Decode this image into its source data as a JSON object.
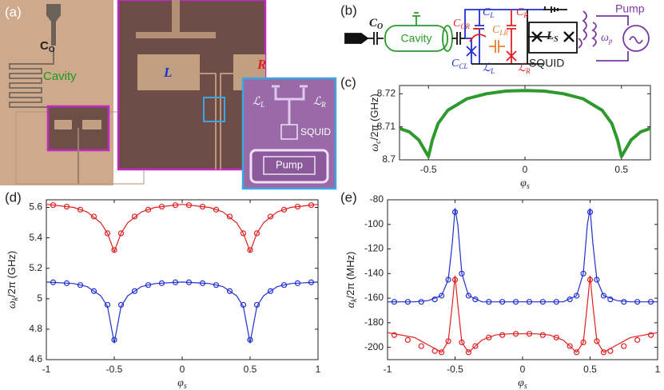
{
  "figure": {
    "panels": [
      "(a)",
      "(b)",
      "(c)",
      "(d)",
      "(e)"
    ],
    "photo": {
      "co": {
        "main": "C",
        "sub": "O"
      },
      "cavity": "Cavity",
      "L": "L",
      "R": "R",
      "ll": {
        "main": "ℒ",
        "sub": "L"
      },
      "lr": {
        "main": "ℒ",
        "sub": "R"
      },
      "squid": "SQUID",
      "pump": "Pump"
    },
    "circuit": {
      "co": {
        "main": "C",
        "sub": "O"
      },
      "cavity": "Cavity",
      "cl": {
        "main": "C",
        "sub": "L"
      },
      "ccr": {
        "main": "C",
        "sub": "CR"
      },
      "clr": {
        "main": "C",
        "sub": "LR"
      },
      "cr": {
        "main": "C",
        "sub": "R"
      },
      "ccl": {
        "main": "C",
        "sub": "CL"
      },
      "ll": {
        "main": "ℒ",
        "sub": "L"
      },
      "lr": {
        "main": "ℒ",
        "sub": "R"
      },
      "ls": {
        "main": "L",
        "sub": "S"
      },
      "squid": "SQUID",
      "pump": "Pump",
      "wp": {
        "main": "ω",
        "sub": "p"
      }
    }
  },
  "chart_data": [
    {
      "type": "line",
      "xlabel": {
        "main": "φ",
        "sub": "s"
      },
      "ylabel": {
        "main": "ω",
        "sub": "c",
        "rest": "/2π (GHz)"
      },
      "xlim": [
        -0.65,
        0.65
      ],
      "ylim": [
        8.7,
        8.7225
      ],
      "xticks": [
        -0.5,
        0,
        0.5
      ],
      "yticks": [
        8.7,
        8.71,
        8.72
      ],
      "series": [
        {
          "style": "band",
          "color": "#2e9a2e",
          "x": [
            -0.65,
            -0.6,
            -0.55,
            -0.52,
            -0.5,
            -0.48,
            -0.45,
            -0.4,
            -0.3,
            -0.2,
            -0.1,
            0,
            0.1,
            0.2,
            0.3,
            0.4,
            0.45,
            0.48,
            0.5,
            0.52,
            0.55,
            0.6,
            0.65
          ],
          "values": [
            8.7095,
            8.7085,
            8.706,
            8.703,
            8.701,
            8.706,
            8.711,
            8.715,
            8.7185,
            8.72,
            8.7208,
            8.721,
            8.7208,
            8.72,
            8.7185,
            8.715,
            8.711,
            8.706,
            8.701,
            8.703,
            8.706,
            8.7085,
            8.7095
          ]
        }
      ]
    },
    {
      "type": "line",
      "xlabel": {
        "main": "φ",
        "sub": "s"
      },
      "ylabel": {
        "main": "ω",
        "sub": "k",
        "rest": "/2π (GHz)"
      },
      "xlim": [
        -1,
        1
      ],
      "ylim": [
        4.6,
        5.65
      ],
      "xticks": [
        -1,
        -0.5,
        0,
        0.5,
        1
      ],
      "yticks": [
        4.6,
        4.8,
        5,
        5.2,
        5.4,
        5.6
      ],
      "series": [
        {
          "style": "line",
          "color": "#e02020",
          "x": [
            -1,
            -0.8,
            -0.7,
            -0.6,
            -0.55,
            -0.5,
            -0.45,
            -0.4,
            -0.3,
            -0.2,
            0,
            0.2,
            0.3,
            0.4,
            0.45,
            0.5,
            0.55,
            0.6,
            0.7,
            0.8,
            1
          ],
          "values": [
            5.62,
            5.6,
            5.57,
            5.5,
            5.43,
            5.31,
            5.43,
            5.5,
            5.57,
            5.6,
            5.62,
            5.6,
            5.57,
            5.5,
            5.43,
            5.31,
            5.43,
            5.5,
            5.57,
            5.6,
            5.62
          ]
        },
        {
          "style": "line",
          "color": "#2030d0",
          "x": [
            -1,
            -0.8,
            -0.7,
            -0.6,
            -0.55,
            -0.5,
            -0.45,
            -0.4,
            -0.3,
            -0.2,
            0,
            0.2,
            0.3,
            0.4,
            0.45,
            0.5,
            0.55,
            0.6,
            0.7,
            0.8,
            1
          ],
          "values": [
            5.11,
            5.1,
            5.08,
            5.02,
            4.95,
            4.71,
            4.95,
            5.02,
            5.08,
            5.1,
            5.11,
            5.1,
            5.08,
            5.02,
            4.95,
            4.71,
            4.95,
            5.02,
            5.08,
            5.1,
            5.11
          ]
        },
        {
          "style": "markers",
          "color": "#e02020",
          "x": [
            -0.95,
            -0.85,
            -0.75,
            -0.65,
            -0.55,
            -0.5,
            -0.45,
            -0.35,
            -0.25,
            -0.15,
            -0.05,
            0.05,
            0.15,
            0.25,
            0.35,
            0.45,
            0.5,
            0.55,
            0.65,
            0.75,
            0.85,
            0.95
          ],
          "values": [
            5.615,
            5.605,
            5.585,
            5.54,
            5.43,
            5.32,
            5.43,
            5.54,
            5.585,
            5.605,
            5.615,
            5.615,
            5.605,
            5.585,
            5.54,
            5.43,
            5.32,
            5.43,
            5.54,
            5.585,
            5.605,
            5.615
          ]
        },
        {
          "style": "markers",
          "color": "#2030d0",
          "x": [
            -0.95,
            -0.85,
            -0.75,
            -0.65,
            -0.55,
            -0.5,
            -0.45,
            -0.35,
            -0.25,
            -0.15,
            -0.05,
            0.05,
            0.15,
            0.25,
            0.35,
            0.45,
            0.5,
            0.55,
            0.65,
            0.75,
            0.85,
            0.95
          ],
          "values": [
            5.108,
            5.102,
            5.09,
            5.05,
            4.96,
            4.73,
            4.96,
            5.05,
            5.09,
            5.102,
            5.108,
            5.108,
            5.102,
            5.09,
            5.05,
            4.96,
            4.73,
            4.96,
            5.05,
            5.09,
            5.102,
            5.108
          ]
        }
      ]
    },
    {
      "type": "line",
      "xlabel": {
        "main": "φ",
        "sub": "s"
      },
      "ylabel": {
        "main": "α",
        "sub": "k",
        "rest": "/2π (MHz)"
      },
      "xlim": [
        -1,
        1
      ],
      "ylim": [
        -210,
        -80
      ],
      "xticks": [
        -1,
        -0.5,
        0,
        0.5,
        1
      ],
      "yticks": [
        -200,
        -180,
        -160,
        -140,
        -120,
        -100,
        -80
      ],
      "series": [
        {
          "style": "line",
          "color": "#2030d0",
          "x": [
            -1,
            -0.8,
            -0.7,
            -0.6,
            -0.55,
            -0.52,
            -0.5,
            -0.48,
            -0.45,
            -0.4,
            -0.3,
            -0.2,
            -0.1,
            0,
            0.1,
            0.2,
            0.3,
            0.4,
            0.45,
            0.48,
            0.5,
            0.52,
            0.55,
            0.6,
            0.7,
            0.8,
            1
          ],
          "values": [
            -163,
            -163,
            -162,
            -158,
            -145,
            -115,
            -87,
            -100,
            -140,
            -158,
            -163,
            -163,
            -163,
            -163,
            -163,
            -163,
            -163,
            -158,
            -140,
            -100,
            -87,
            -115,
            -145,
            -158,
            -162,
            -163,
            -163
          ]
        },
        {
          "style": "line",
          "color": "#e02020",
          "x": [
            -1,
            -0.8,
            -0.7,
            -0.6,
            -0.55,
            -0.52,
            -0.5,
            -0.48,
            -0.45,
            -0.4,
            -0.3,
            -0.2,
            -0.1,
            0,
            0.1,
            0.2,
            0.3,
            0.4,
            0.45,
            0.48,
            0.5,
            0.52,
            0.55,
            0.6,
            0.7,
            0.8,
            1
          ],
          "values": [
            -188,
            -192,
            -198,
            -204,
            -195,
            -165,
            -142,
            -165,
            -196,
            -204,
            -194,
            -190,
            -189,
            -189,
            -189,
            -190,
            -194,
            -204,
            -196,
            -165,
            -142,
            -165,
            -195,
            -204,
            -198,
            -192,
            -188
          ]
        },
        {
          "style": "markers",
          "color": "#2030d0",
          "x": [
            -0.95,
            -0.85,
            -0.75,
            -0.65,
            -0.6,
            -0.55,
            -0.5,
            -0.45,
            -0.4,
            -0.35,
            -0.25,
            -0.15,
            -0.05,
            0.05,
            0.15,
            0.25,
            0.35,
            0.4,
            0.45,
            0.5,
            0.55,
            0.6,
            0.65,
            0.75,
            0.85,
            0.95
          ],
          "values": [
            -163,
            -163,
            -163,
            -161,
            -158,
            -145,
            -90,
            -140,
            -158,
            -161,
            -163,
            -163,
            -163,
            -163,
            -163,
            -163,
            -161,
            -158,
            -140,
            -90,
            -145,
            -158,
            -161,
            -163,
            -163,
            -163
          ]
        },
        {
          "style": "markers",
          "color": "#e02020",
          "x": [
            -0.95,
            -0.85,
            -0.75,
            -0.65,
            -0.6,
            -0.55,
            -0.5,
            -0.45,
            -0.4,
            -0.35,
            -0.25,
            -0.15,
            -0.05,
            0.05,
            0.15,
            0.25,
            0.35,
            0.4,
            0.45,
            0.5,
            0.55,
            0.6,
            0.65,
            0.75,
            0.85,
            0.95
          ],
          "values": [
            -190,
            -194,
            -199,
            -203,
            -204,
            -195,
            -145,
            -196,
            -204,
            -199,
            -192,
            -190,
            -189,
            -189,
            -190,
            -192,
            -199,
            -204,
            -196,
            -145,
            -195,
            -204,
            -203,
            -199,
            -194,
            -190
          ]
        }
      ]
    }
  ]
}
